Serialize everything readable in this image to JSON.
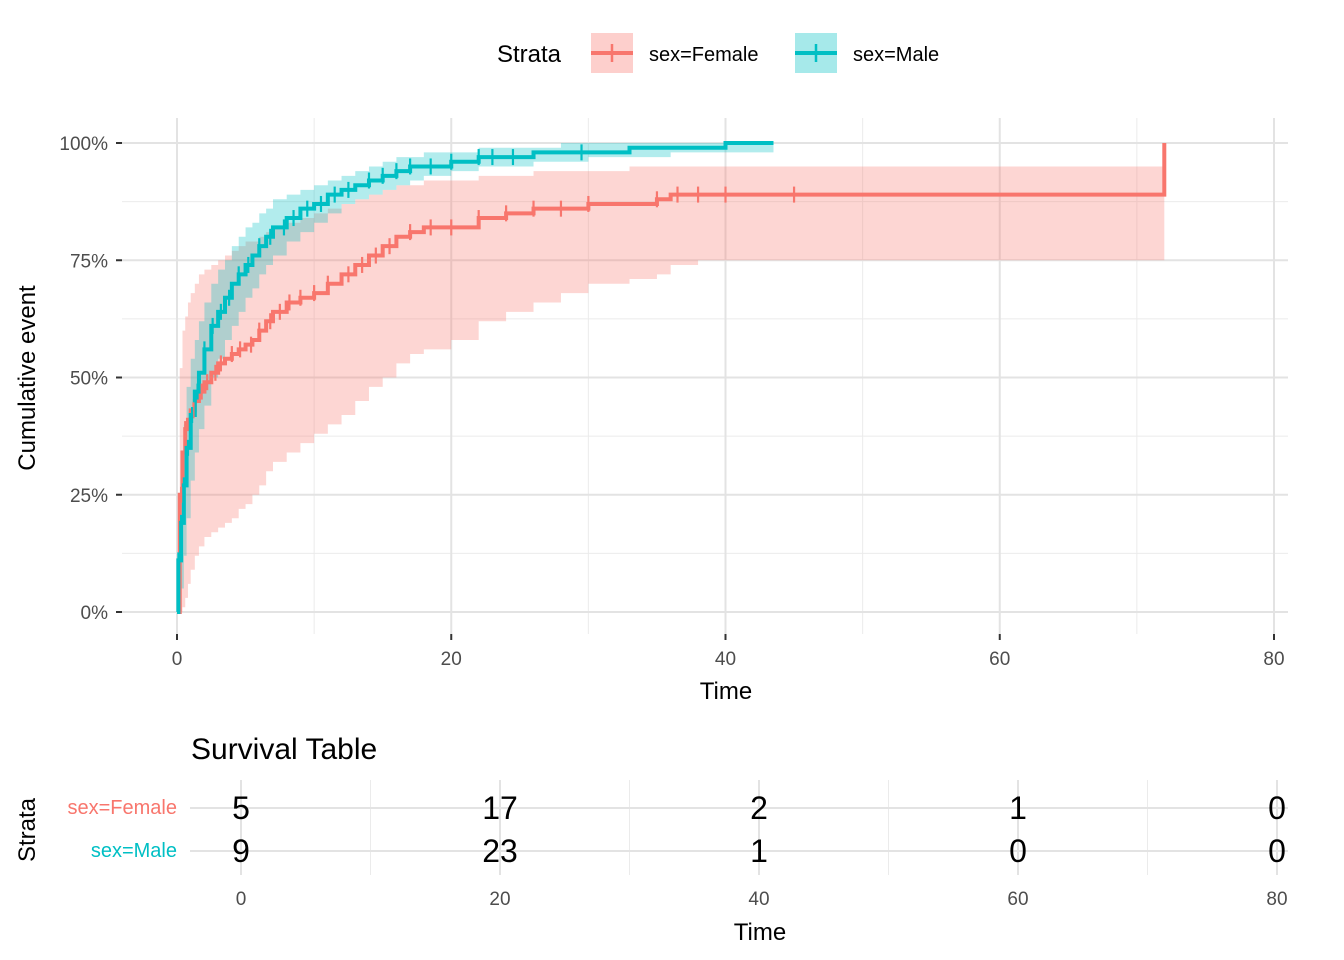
{
  "legend": {
    "title": "Strata",
    "entries": [
      {
        "label": "sex=Female",
        "color": "#F8766D"
      },
      {
        "label": "sex=Male",
        "color": "#00BFC4"
      }
    ],
    "placement": "top"
  },
  "chart_data": [
    {
      "type": "line",
      "subtype": "step-with-confidence-band",
      "xlabel": "Time",
      "ylabel": "Cumulative event",
      "xlim": [
        0,
        80
      ],
      "ylim": [
        0,
        1
      ],
      "x_ticks": [
        0,
        20,
        40,
        60,
        80
      ],
      "x_tick_labels": [
        "0",
        "20",
        "40",
        "60",
        "80"
      ],
      "y_ticks": [
        0,
        0.25,
        0.5,
        0.75,
        1
      ],
      "y_tick_labels": [
        "0%",
        "25%",
        "50%",
        "75%",
        "100%"
      ],
      "grid": true,
      "series": [
        {
          "name": "sex=Female",
          "color": "#F8766D",
          "x": [
            0,
            0.2,
            0.4,
            0.6,
            0.8,
            1.0,
            1.3,
            1.6,
            2.0,
            2.5,
            3.0,
            3.5,
            4.0,
            4.5,
            5.0,
            5.5,
            6.0,
            6.5,
            7.0,
            8.0,
            9.0,
            10.0,
            11.0,
            12.0,
            13.0,
            14.0,
            15.0,
            16.0,
            17.0,
            18.0,
            20.0,
            22.0,
            24.0,
            26.0,
            28.0,
            30.0,
            33.0,
            35.0,
            36.0,
            38.0,
            45.0,
            72.0
          ],
          "y": [
            0,
            0.25,
            0.34,
            0.39,
            0.41,
            0.43,
            0.45,
            0.47,
            0.49,
            0.51,
            0.53,
            0.54,
            0.55,
            0.56,
            0.57,
            0.58,
            0.6,
            0.62,
            0.64,
            0.66,
            0.67,
            0.68,
            0.7,
            0.72,
            0.74,
            0.76,
            0.78,
            0.8,
            0.81,
            0.82,
            0.82,
            0.84,
            0.85,
            0.86,
            0.86,
            0.87,
            0.87,
            0.88,
            0.89,
            0.89,
            0.89,
            1.0
          ],
          "lower": [
            0,
            0.0,
            0.01,
            0.03,
            0.06,
            0.09,
            0.12,
            0.14,
            0.16,
            0.17,
            0.18,
            0.19,
            0.2,
            0.22,
            0.23,
            0.25,
            0.27,
            0.3,
            0.32,
            0.34,
            0.36,
            0.38,
            0.4,
            0.42,
            0.45,
            0.48,
            0.5,
            0.53,
            0.55,
            0.56,
            0.58,
            0.62,
            0.64,
            0.66,
            0.68,
            0.7,
            0.71,
            0.72,
            0.74,
            0.75,
            0.75,
            0.76
          ],
          "upper": [
            0,
            0.52,
            0.6,
            0.63,
            0.66,
            0.68,
            0.7,
            0.72,
            0.73,
            0.74,
            0.75,
            0.76,
            0.77,
            0.78,
            0.79,
            0.79,
            0.8,
            0.81,
            0.82,
            0.83,
            0.84,
            0.85,
            0.86,
            0.87,
            0.88,
            0.89,
            0.9,
            0.91,
            0.91,
            0.92,
            0.92,
            0.93,
            0.93,
            0.94,
            0.94,
            0.94,
            0.95,
            0.95,
            0.95,
            0.95,
            0.95,
            0.95
          ],
          "censor_x": [
            0.3,
            0.6,
            1.2,
            1.8,
            2.2,
            2.8,
            3.2,
            4.0,
            4.6,
            5.4,
            6.0,
            6.8,
            7.5,
            8.2,
            9.0,
            10.0,
            11.0,
            12.5,
            13.5,
            14.5,
            15.5,
            17.0,
            18.5,
            20.0,
            22.0,
            24.0,
            26.0,
            28.0,
            30.0,
            35.0,
            36.5,
            38.0,
            40.0,
            45.0
          ]
        },
        {
          "name": "sex=Male",
          "color": "#00BFC4",
          "x": [
            0,
            0.1,
            0.3,
            0.5,
            0.7,
            1.0,
            1.3,
            1.6,
            2.0,
            2.5,
            3.0,
            3.5,
            4.0,
            4.5,
            5.0,
            5.5,
            6.0,
            6.5,
            7.0,
            8.0,
            9.0,
            10.0,
            11.0,
            12.0,
            13.0,
            14.0,
            15.0,
            16.0,
            17.0,
            18.0,
            20.0,
            22.0,
            24.0,
            26.0,
            28.0,
            30.0,
            33.0,
            36.0,
            40.0,
            43.5
          ],
          "y": [
            0,
            0.11,
            0.19,
            0.27,
            0.35,
            0.42,
            0.47,
            0.51,
            0.56,
            0.61,
            0.64,
            0.67,
            0.7,
            0.72,
            0.74,
            0.76,
            0.78,
            0.8,
            0.82,
            0.84,
            0.86,
            0.87,
            0.89,
            0.9,
            0.91,
            0.92,
            0.93,
            0.94,
            0.95,
            0.95,
            0.96,
            0.97,
            0.97,
            0.98,
            0.98,
            0.98,
            0.99,
            0.99,
            1.0,
            1.0
          ],
          "lower": [
            0,
            0.0,
            0.05,
            0.12,
            0.2,
            0.28,
            0.34,
            0.39,
            0.44,
            0.5,
            0.54,
            0.58,
            0.61,
            0.64,
            0.67,
            0.69,
            0.72,
            0.74,
            0.76,
            0.79,
            0.81,
            0.83,
            0.85,
            0.87,
            0.88,
            0.89,
            0.9,
            0.91,
            0.92,
            0.93,
            0.94,
            0.95,
            0.95,
            0.96,
            0.96,
            0.97,
            0.97,
            0.98,
            0.98,
            0.99
          ],
          "upper": [
            0,
            0.22,
            0.32,
            0.4,
            0.48,
            0.54,
            0.58,
            0.62,
            0.66,
            0.7,
            0.73,
            0.75,
            0.78,
            0.8,
            0.82,
            0.83,
            0.85,
            0.86,
            0.88,
            0.89,
            0.9,
            0.91,
            0.92,
            0.93,
            0.94,
            0.95,
            0.96,
            0.97,
            0.97,
            0.98,
            0.98,
            0.99,
            0.99,
            0.99,
            1.0,
            1.0,
            1.0,
            1.0,
            1.0,
            1.0
          ],
          "censor_x": [
            0.1,
            0.3,
            0.5,
            0.8,
            1.1,
            1.5,
            2.0,
            2.6,
            3.2,
            3.8,
            4.5,
            5.2,
            6.0,
            6.8,
            7.8,
            8.5,
            9.5,
            10.5,
            11.5,
            12.5,
            14.0,
            15.0,
            16.0,
            17.0,
            18.5,
            20.0,
            22.0,
            23.0,
            24.5,
            29.5
          ]
        }
      ]
    },
    {
      "type": "table",
      "title": "Survival Table",
      "ylabel": "Strata",
      "xlabel": "Time",
      "xlim": [
        0,
        80
      ],
      "x_ticks": [
        0,
        20,
        40,
        60,
        80
      ],
      "x_tick_labels": [
        "0",
        "20",
        "40",
        "60",
        "80"
      ],
      "rows": [
        {
          "label": "sex=Female",
          "color": "#F8766D",
          "values": [
            "5",
            "17",
            "2",
            "1",
            "0"
          ]
        },
        {
          "label": "sex=Male",
          "color": "#00BFC4",
          "values": [
            "9",
            "23",
            "1",
            "0",
            "0"
          ]
        }
      ]
    }
  ]
}
